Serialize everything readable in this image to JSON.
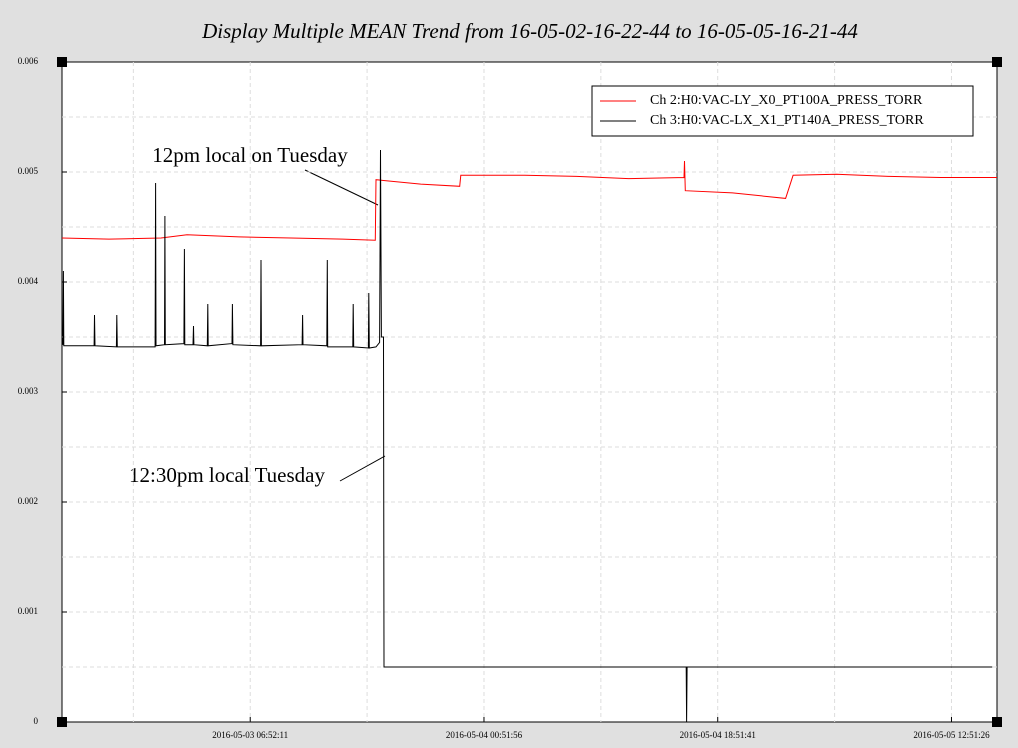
{
  "chart_data": {
    "type": "line",
    "title": "Display Multiple MEAN Trend from 16-05-02-16-22-44 to 16-05-05-16-21-44",
    "annotations": [
      "12pm local on Tuesday",
      "12:30pm local Tuesday"
    ],
    "xlim": [
      "2016-05-02 16:22:44",
      "2016-05-05 16:21:44"
    ],
    "xticks": [
      "2016-05-03 06:52:11",
      "2016-05-04 00:51:56",
      "2016-05-04 18:51:41",
      "2016-05-05 12:51:26"
    ],
    "ylim": [
      0,
      0.006
    ],
    "yticks": [
      0,
      0.001,
      0.002,
      0.003,
      0.004,
      0.005,
      0.006
    ],
    "grid": true,
    "legend": "upper right",
    "series": [
      {
        "name": "Ch 2:H0:VAC-LY_X0_PT100A_PRESS_TORR",
        "color": "#ff0000",
        "x": [
          "2016-05-02 16:22:44",
          "2016-05-02 20:00:00",
          "2016-05-03 00:00:00",
          "2016-05-03 02:00:00",
          "2016-05-03 06:00:00",
          "2016-05-03 10:00:00",
          "2016-05-03 14:00:00",
          "2016-05-03 16:30:00",
          "2016-05-03 16:33:00",
          "2016-05-03 20:00:00",
          "2016-05-03 23:00:00",
          "2016-05-03 23:05:00",
          "2016-05-04 04:00:00",
          "2016-05-04 08:00:00",
          "2016-05-04 12:00:00",
          "2016-05-04 16:16:00",
          "2016-05-04 16:18:00",
          "2016-05-04 16:22:00",
          "2016-05-04 20:00:00",
          "2016-05-05 00:05:00",
          "2016-05-05 00:40:00",
          "2016-05-05 04:00:00",
          "2016-05-05 08:00:00",
          "2016-05-05 12:00:00",
          "2016-05-05 16:21:44"
        ],
        "values": [
          0.0044,
          0.00439,
          0.0044,
          0.00443,
          0.00441,
          0.0044,
          0.00439,
          0.00438,
          0.00493,
          0.00489,
          0.00487,
          0.00497,
          0.00497,
          0.00496,
          0.00494,
          0.00495,
          0.0051,
          0.00483,
          0.00481,
          0.00476,
          0.00497,
          0.00498,
          0.00496,
          0.00495,
          0.00495
        ]
      },
      {
        "name": "Ch 3:H0:VAC-LX_X1_PT140A_PRESS_TORR",
        "color": "#000000",
        "x": [
          "2016-05-02 16:22:44",
          "2016-05-02 16:27:00",
          "2016-05-02 16:29:00",
          "2016-05-02 16:31:00",
          "2016-05-02 18:51:00",
          "2016-05-02 18:53:00",
          "2016-05-02 18:55:00",
          "2016-05-02 20:34:00",
          "2016-05-02 20:36:00",
          "2016-05-02 20:38:00",
          "2016-05-02 23:33:00",
          "2016-05-02 23:35:00",
          "2016-05-02 23:37:00",
          "2016-05-03 00:16:00",
          "2016-05-03 00:18:00",
          "2016-05-03 00:20:00",
          "2016-05-03 01:46:00",
          "2016-05-03 01:48:00",
          "2016-05-03 01:50:00",
          "2016-05-03 02:28:00",
          "2016-05-03 02:30:00",
          "2016-05-03 02:32:00",
          "2016-05-03 03:34:00",
          "2016-05-03 03:36:00",
          "2016-05-03 03:38:00",
          "2016-05-03 05:28:00",
          "2016-05-03 05:30:00",
          "2016-05-03 05:32:00",
          "2016-05-03 07:40:00",
          "2016-05-03 07:42:00",
          "2016-05-03 07:44:00",
          "2016-05-03 10:52:00",
          "2016-05-03 10:54:00",
          "2016-05-03 10:56:00",
          "2016-05-03 12:46:00",
          "2016-05-03 12:48:00",
          "2016-05-03 12:50:00",
          "2016-05-03 14:46:00",
          "2016-05-03 14:48:00",
          "2016-05-03 14:50:00",
          "2016-05-03 15:58:00",
          "2016-05-03 16:00:00",
          "2016-05-03 16:02:00",
          "2016-05-03 16:33:00",
          "2016-05-03 16:50:00",
          "2016-05-03 16:54:00",
          "2016-05-03 16:58:00",
          "2016-05-03 17:08:00",
          "2016-05-03 17:10:00",
          "2016-05-04 00:51:56",
          "2016-05-04 16:26:00",
          "2016-05-04 16:28:00",
          "2016-05-04 16:30:00",
          "2016-05-05 16:00:00"
        ],
        "values": [
          0.00345,
          0.00343,
          0.0041,
          0.00342,
          0.00342,
          0.0037,
          0.00342,
          0.00341,
          0.0037,
          0.00341,
          0.00341,
          0.0049,
          0.00342,
          0.00343,
          0.0046,
          0.00343,
          0.00344,
          0.0043,
          0.00343,
          0.00343,
          0.0036,
          0.00343,
          0.00342,
          0.0038,
          0.00342,
          0.00344,
          0.0038,
          0.00343,
          0.00342,
          0.0042,
          0.00342,
          0.00343,
          0.0037,
          0.00343,
          0.00342,
          0.0042,
          0.00341,
          0.00341,
          0.0038,
          0.00341,
          0.0034,
          0.0039,
          0.0034,
          0.00341,
          0.00345,
          0.0052,
          0.0035,
          0.0035,
          0.0005,
          0.0005,
          0.0005,
          0,
          0.0005,
          0.0005
        ]
      }
    ]
  }
}
